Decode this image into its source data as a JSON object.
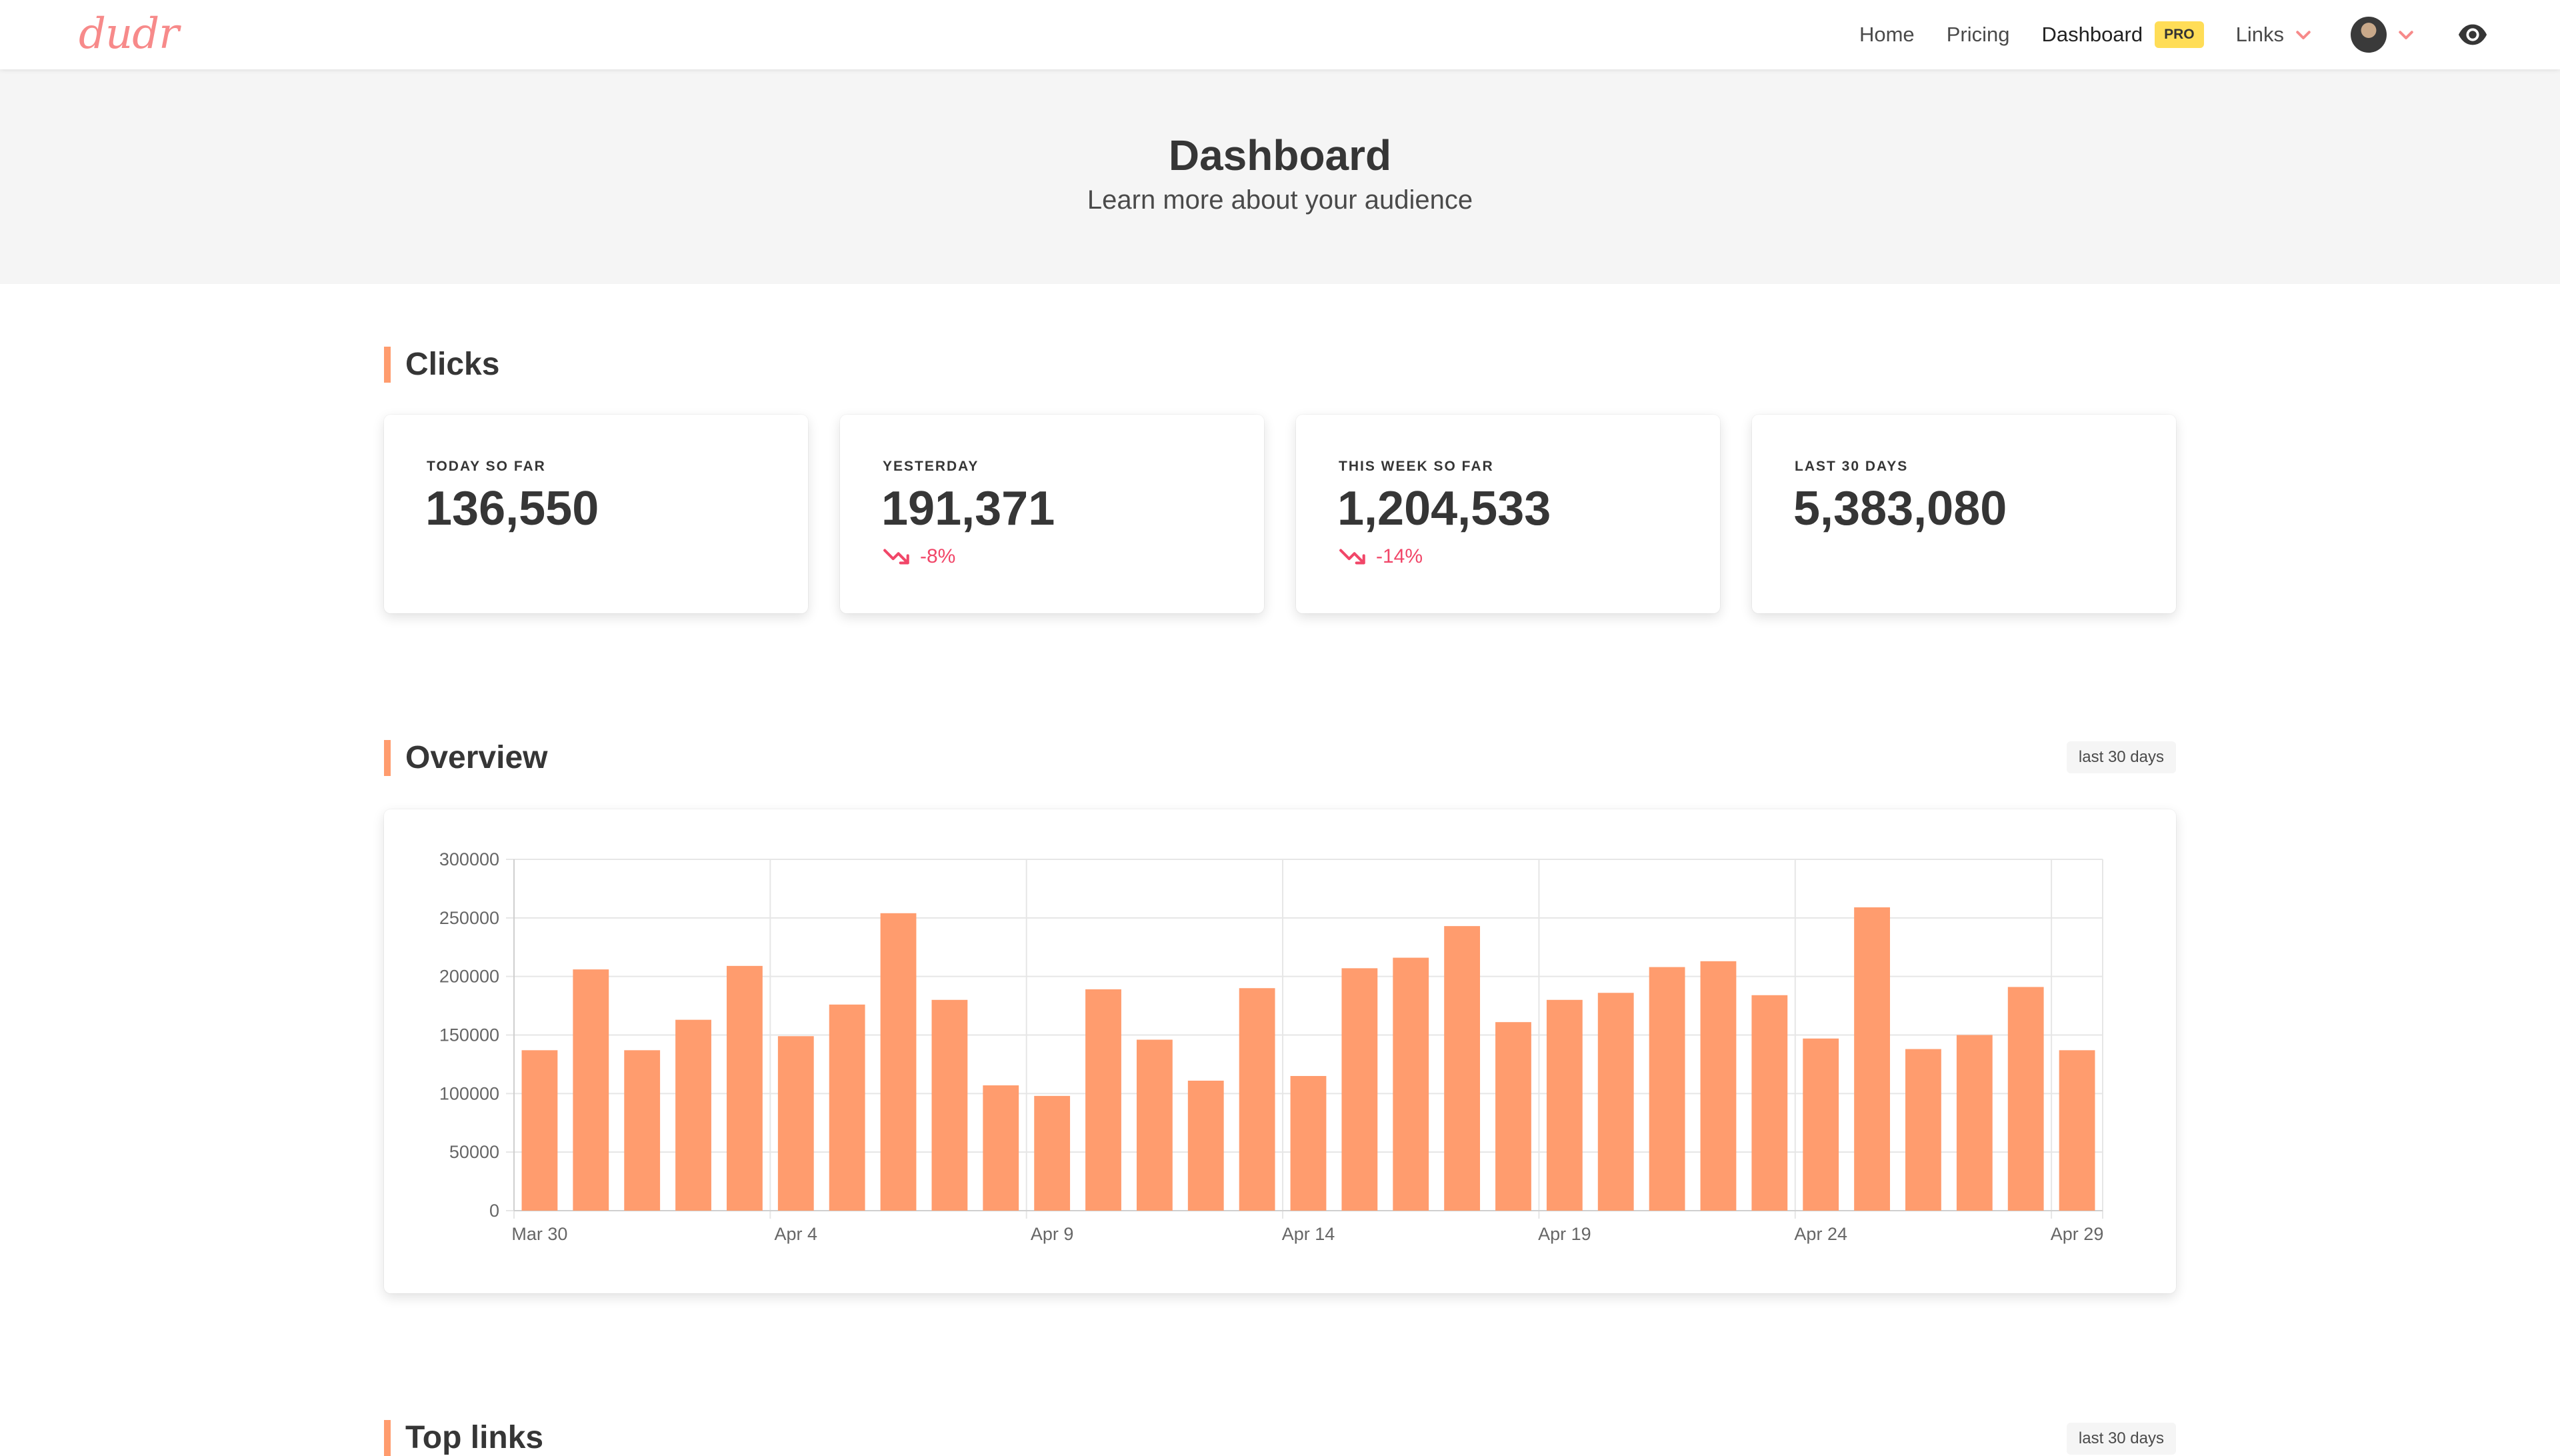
{
  "nav": {
    "logo": "dudr",
    "home": "Home",
    "pricing": "Pricing",
    "dashboard": "Dashboard",
    "pro_badge": "PRO",
    "links": "Links",
    "accent_color": "#f78a8a"
  },
  "hero": {
    "title": "Dashboard",
    "subtitle": "Learn more about your audience"
  },
  "clicks": {
    "title": "Clicks",
    "cards": [
      {
        "label": "TODAY SO FAR",
        "value": "136,550",
        "delta": ""
      },
      {
        "label": "YESTERDAY",
        "value": "191,371",
        "delta": "-8%"
      },
      {
        "label": "THIS WEEK SO FAR",
        "value": "1,204,533",
        "delta": "-14%"
      },
      {
        "label": "LAST 30 DAYS",
        "value": "5,383,080",
        "delta": ""
      }
    ],
    "negative_color": "#f14668"
  },
  "overview": {
    "title": "Overview",
    "range": "last 30 days"
  },
  "top_links": {
    "title": "Top links",
    "range": "last 30 days"
  },
  "chart_data": {
    "type": "bar",
    "categories": [
      "Mar 30",
      "Mar 31",
      "Apr 1",
      "Apr 2",
      "Apr 3",
      "Apr 4",
      "Apr 5",
      "Apr 6",
      "Apr 7",
      "Apr 8",
      "Apr 9",
      "Apr 10",
      "Apr 11",
      "Apr 12",
      "Apr 13",
      "Apr 14",
      "Apr 15",
      "Apr 16",
      "Apr 17",
      "Apr 18",
      "Apr 19",
      "Apr 20",
      "Apr 21",
      "Apr 22",
      "Apr 23",
      "Apr 24",
      "Apr 25",
      "Apr 26",
      "Apr 27",
      "Apr 28",
      "Apr 29"
    ],
    "values": [
      137000,
      206000,
      137000,
      163000,
      209000,
      149000,
      176000,
      254000,
      180000,
      107000,
      98000,
      189000,
      146000,
      111000,
      190000,
      115000,
      207000,
      216000,
      243000,
      161000,
      180000,
      186000,
      208000,
      213000,
      184000,
      147000,
      259000,
      138000,
      150000,
      191000,
      137000
    ],
    "xticks": [
      "Mar 30",
      "Apr 4",
      "Apr 9",
      "Apr 14",
      "Apr 19",
      "Apr 24",
      "Apr 29"
    ],
    "yticks": [
      0,
      50000,
      100000,
      150000,
      200000,
      250000,
      300000
    ],
    "ylim": [
      0,
      300000
    ],
    "bar_color": "#ff9c6e",
    "grid": true,
    "legend": "none"
  }
}
